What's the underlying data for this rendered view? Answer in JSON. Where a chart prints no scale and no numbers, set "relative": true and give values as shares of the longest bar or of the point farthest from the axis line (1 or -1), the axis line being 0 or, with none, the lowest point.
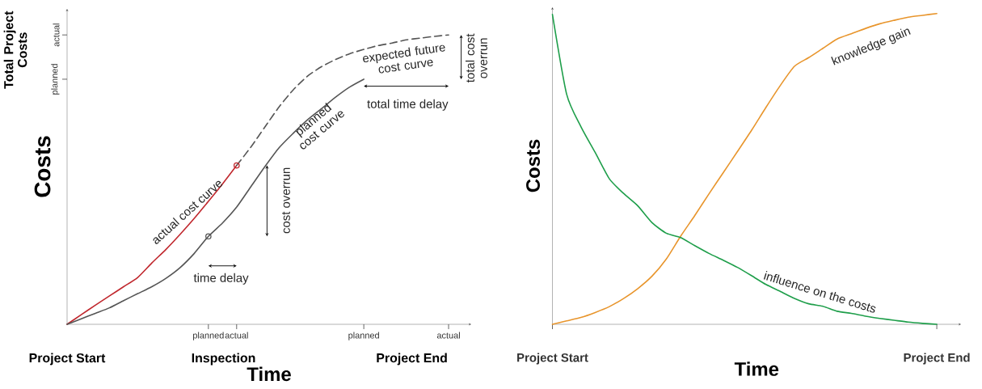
{
  "chart_data": [
    {
      "type": "line",
      "relative": true,
      "ylabel": "Costs",
      "xlabel": "Time",
      "categories": [
        null,
        null,
        null,
        null,
        null,
        null,
        null,
        null,
        null,
        null,
        "planned",
        null,
        "actual",
        null,
        null,
        null,
        null,
        null,
        null,
        null,
        null,
        "planned",
        null,
        null,
        null,
        null,
        null,
        "actual"
      ],
      "series": [
        {
          "color": "#c0272d",
          "values": [
            0,
            0.033,
            0.066,
            0.098,
            0.13,
            0.162,
            0.212,
            0.259,
            0.311,
            0.366,
            0.425,
            0.485,
            0.549,
            null,
            null,
            null,
            null,
            null,
            null,
            null,
            null,
            null,
            null,
            null,
            null,
            null,
            null,
            null
          ]
        },
        {
          "color": "#555555",
          "values": [
            0,
            0.019,
            0.038,
            0.057,
            0.082,
            0.106,
            0.13,
            0.159,
            0.196,
            0.245,
            0.304,
            0.35,
            0.405,
            0.475,
            0.545,
            0.61,
            0.66,
            0.706,
            0.745,
            0.785,
            0.82,
            0.847,
            null,
            null,
            null,
            null,
            null,
            null
          ]
        },
        {
          "color": "#555555",
          "line_style": "dashed",
          "values": [
            null,
            null,
            null,
            null,
            null,
            null,
            null,
            null,
            null,
            null,
            null,
            null,
            0.549,
            0.612,
            0.682,
            0.751,
            0.81,
            0.857,
            0.89,
            0.915,
            0.935,
            0.95,
            0.963,
            0.972,
            0.983,
            0.989,
            0.995,
            1.0
          ]
        },
        {
          "type": "scatter",
          "marker": "circle",
          "color": "#c0272d",
          "values": [
            null,
            null,
            null,
            null,
            null,
            null,
            null,
            null,
            null,
            null,
            null,
            null,
            0.549,
            null,
            null,
            null,
            null,
            null,
            null,
            null,
            null,
            null,
            null,
            null,
            null,
            null,
            null,
            null
          ]
        },
        {
          "type": "scatter",
          "marker": "circle",
          "color": "#555555",
          "values": [
            null,
            null,
            null,
            null,
            null,
            null,
            null,
            null,
            null,
            null,
            0.304,
            null,
            null,
            null,
            null,
            null,
            null,
            null,
            null,
            null,
            null,
            null,
            null,
            null,
            null,
            null,
            null,
            null
          ]
        }
      ],
      "annotations": [
        "Total Project Costs",
        "planned",
        "actual",
        "Project Start",
        "Inspection",
        "Project End",
        "actual cost curve",
        "planned cost curve",
        "expected future cost curve",
        "cost overrun",
        "time delay",
        "total time delay",
        "total cost overrun"
      ]
    },
    {
      "type": "line",
      "relative": true,
      "ylabel": "Costs",
      "xlabel": "Time",
      "categories": [
        "Project Start",
        null,
        null,
        null,
        null,
        null,
        null,
        null,
        null,
        null,
        null,
        null,
        null,
        null,
        null,
        null,
        null,
        null,
        null,
        null,
        null,
        null,
        null,
        null,
        null,
        null,
        null,
        "Project End"
      ],
      "series": [
        {
          "color": "#e8952c",
          "values": [
            0,
            0.011,
            0.022,
            0.038,
            0.057,
            0.083,
            0.115,
            0.155,
            0.21,
            0.283,
            0.35,
            0.42,
            0.488,
            0.556,
            0.625,
            0.698,
            0.768,
            0.83,
            0.858,
            0.888,
            0.918,
            0.935,
            0.952,
            0.967,
            0.978,
            0.988,
            0.994,
            1.0
          ]
        },
        {
          "color": "#1e9e4a",
          "values": [
            0.997,
            0.74,
            0.636,
            0.553,
            0.468,
            0.421,
            0.381,
            0.327,
            0.293,
            0.279,
            0.253,
            0.228,
            0.206,
            0.183,
            0.156,
            0.128,
            0.106,
            0.083,
            0.066,
            0.058,
            0.042,
            0.035,
            0.026,
            0.019,
            0.013,
            0.007,
            0.003,
            0
          ]
        }
      ],
      "annotations": [
        "knowledge gain",
        "influence on the costs"
      ]
    }
  ]
}
